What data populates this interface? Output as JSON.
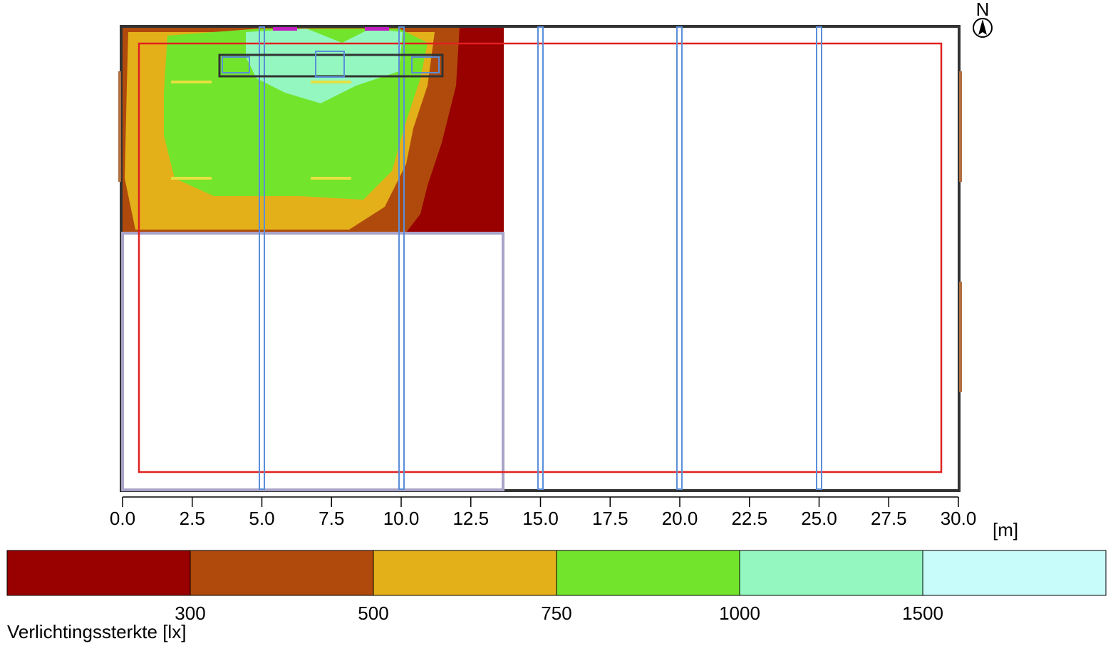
{
  "north": "N",
  "scale": {
    "ticks": [
      "0.0",
      "2.5",
      "5.0",
      "7.5",
      "10.0",
      "12.5",
      "15.0",
      "17.5",
      "20.0",
      "22.5",
      "25.0",
      "27.5",
      "30.0"
    ],
    "unit": "[m]"
  },
  "legend": {
    "title": "Verlichtingssterkte [lx]",
    "colors": [
      "#990000",
      "#b04a0c",
      "#e3b01a",
      "#72e42c",
      "#94f7c0",
      "#c8fcfb"
    ],
    "labels": [
      "300",
      "500",
      "750",
      "1000",
      "1500"
    ]
  }
}
